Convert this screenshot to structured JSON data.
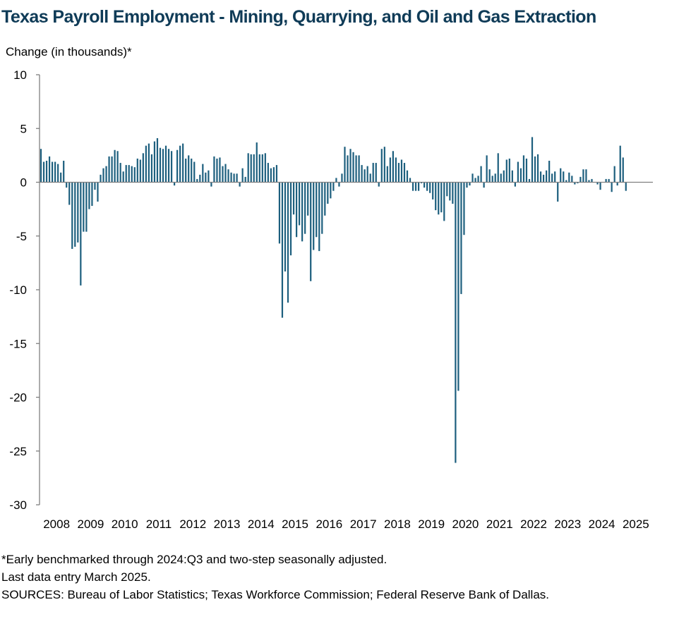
{
  "colors": {
    "bar": "#1d5f7e",
    "axis": "#7f7f7f",
    "title": "#0f3b57"
  },
  "chart_data": {
    "type": "bar",
    "title": "Texas Payroll Employment - Mining, Quarrying, and Oil and Gas Extraction",
    "ylabel": "Change (in thousands)*",
    "xlabel": "",
    "ylim": [
      -30,
      10
    ],
    "yticks": [
      10,
      5,
      0,
      -5,
      -10,
      -15,
      -20,
      -25,
      -30
    ],
    "x_tick_labels": [
      "2008",
      "2009",
      "2010",
      "2011",
      "2012",
      "2013",
      "2014",
      "2015",
      "2016",
      "2017",
      "2018",
      "2019",
      "2020",
      "2021",
      "2022",
      "2023",
      "2024",
      "2025"
    ],
    "grid": false,
    "legend": "none",
    "frequency": "monthly",
    "start": "2008-01",
    "end": "2025-03",
    "series": [
      {
        "values": [
          3.1,
          1.9,
          2.0,
          2.4,
          1.9,
          1.9,
          1.7,
          0.9,
          2.0,
          -0.5,
          -2.1,
          -6.2,
          -6.0,
          -5.6,
          -9.6,
          -4.6,
          -4.6,
          -2.5,
          -2.2,
          -0.7,
          -1.8,
          0.7,
          1.3,
          1.5,
          2.4,
          2.4,
          3.0,
          2.9,
          1.8,
          1.0,
          1.6,
          1.6,
          1.5,
          1.4,
          2.2,
          2.1,
          2.7,
          3.4,
          3.6,
          2.6,
          3.8,
          4.1,
          3.2,
          3.1,
          3.4,
          3.1,
          2.9,
          -0.3,
          3.0,
          3.4,
          3.6,
          2.2,
          2.5,
          2.2,
          1.9,
          0.3,
          0.7,
          1.7,
          0.9,
          1.1,
          -0.4,
          2.4,
          2.2,
          2.3,
          1.5,
          1.7,
          1.2,
          0.9,
          0.8,
          0.8,
          -0.4,
          1.3,
          0.5,
          2.7,
          2.6,
          2.6,
          3.7,
          2.6,
          2.6,
          2.7,
          1.8,
          1.3,
          1.4,
          1.6,
          -5.7,
          -12.6,
          -8.3,
          -11.2,
          -6.8,
          -3.0,
          -5.1,
          -4.0,
          -5.5,
          -4.8,
          -3.1,
          -9.2,
          -6.3,
          -5.1,
          -6.4,
          -4.8,
          -3.1,
          -2.0,
          -1.5,
          -0.8,
          0.4,
          -0.4,
          0.8,
          3.3,
          2.5,
          3.1,
          2.8,
          2.5,
          2.5,
          1.6,
          1.2,
          1.5,
          0.8,
          1.8,
          1.8,
          -0.4,
          3.1,
          3.3,
          1.5,
          2.3,
          2.9,
          2.3,
          1.8,
          2.1,
          1.8,
          1.1,
          0.4,
          -0.8,
          -0.8,
          -0.8,
          -0.1,
          -0.5,
          -0.8,
          -1.0,
          -1.6,
          -2.6,
          -3.0,
          -2.8,
          -3.6,
          -1.3,
          -1.7,
          -2.0,
          -26.1,
          -19.4,
          -10.4,
          -4.9,
          -0.5,
          -0.3,
          0.8,
          0.4,
          0.6,
          1.5,
          -0.5,
          2.5,
          1.2,
          0.6,
          0.8,
          2.7,
          0.8,
          1.1,
          2.1,
          2.2,
          1.1,
          -0.4,
          1.9,
          1.3,
          2.5,
          2.2,
          0.3,
          4.2,
          2.4,
          2.6,
          1.0,
          0.7,
          1.1,
          2.0,
          0.8,
          1.0,
          -1.8,
          1.3,
          1.0,
          0.2,
          0.9,
          0.6,
          -0.2,
          -0.1,
          0.5,
          1.2,
          1.2,
          0.2,
          0.3,
          0.0,
          -0.2,
          -0.7,
          0.0,
          0.3,
          0.3,
          -0.9,
          1.5,
          -0.3,
          3.4,
          2.3,
          -0.8
        ]
      }
    ]
  },
  "notes": {
    "line1": "*Early benchmarked through 2024:Q3  and two-step seasonally adjusted.",
    "line2": "Last data entry March 2025.",
    "line3": "SOURCES:  Bureau of Labor Statistics;  Texas Workforce Commission;  Federal Reserve Bank of Dallas."
  }
}
